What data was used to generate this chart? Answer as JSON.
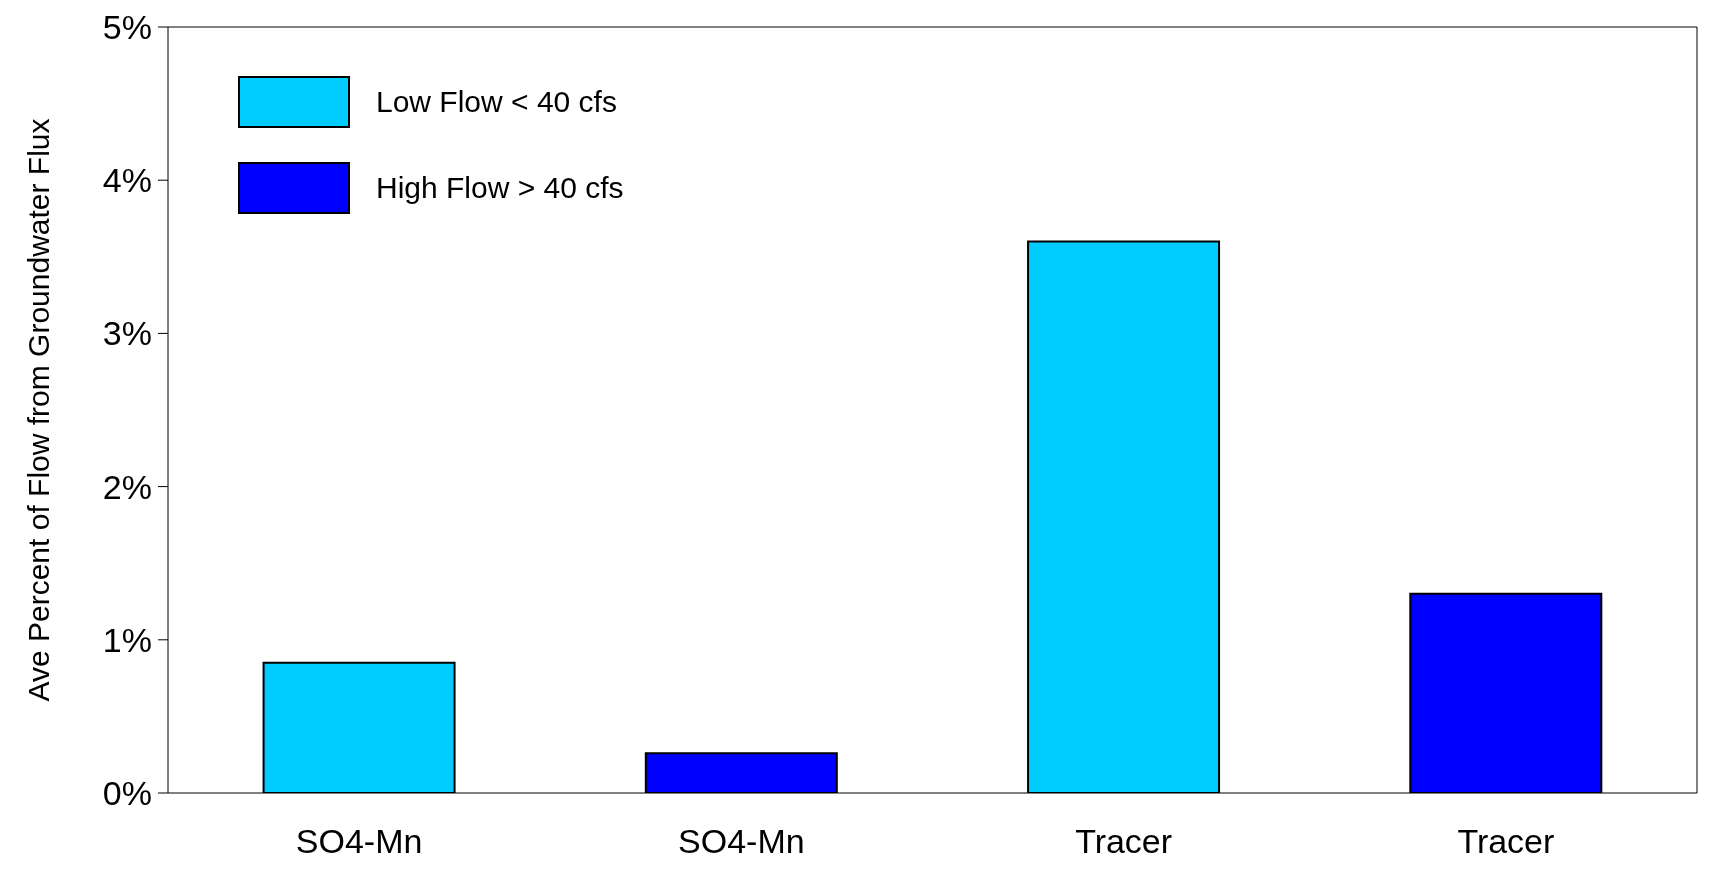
{
  "chart_data": {
    "type": "bar",
    "ylabel": "Ave Percent of Flow from Groundwater Flux",
    "categories": [
      "SO4-Mn",
      "SO4-Mn",
      "Tracer",
      "Tracer"
    ],
    "series": [
      {
        "name": "Low Flow < 40 cfs",
        "color": "#00ccff",
        "values": [
          0.85,
          null,
          3.6,
          null
        ]
      },
      {
        "name": "High Flow > 40 cfs",
        "color": "#0000ff",
        "values": [
          null,
          0.26,
          null,
          1.3
        ]
      }
    ],
    "stacked": true,
    "ylim": [
      0,
      5
    ],
    "yticks": [
      {
        "value": 0,
        "label": "0%"
      },
      {
        "value": 1,
        "label": "1%"
      },
      {
        "value": 2,
        "label": "2%"
      },
      {
        "value": 3,
        "label": "3%"
      },
      {
        "value": 4,
        "label": "4%"
      },
      {
        "value": 5,
        "label": "5%"
      }
    ],
    "grid": false,
    "legend": "top left"
  }
}
